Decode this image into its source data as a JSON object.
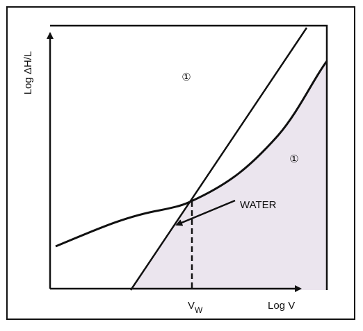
{
  "axes": {
    "y_label": "Log ΔH/L",
    "x_label": "Log V"
  },
  "marker": {
    "base": "V",
    "sub": "W"
  },
  "labels": {
    "water": "WATER",
    "region_upper": "①",
    "region_lower": "①"
  }
}
